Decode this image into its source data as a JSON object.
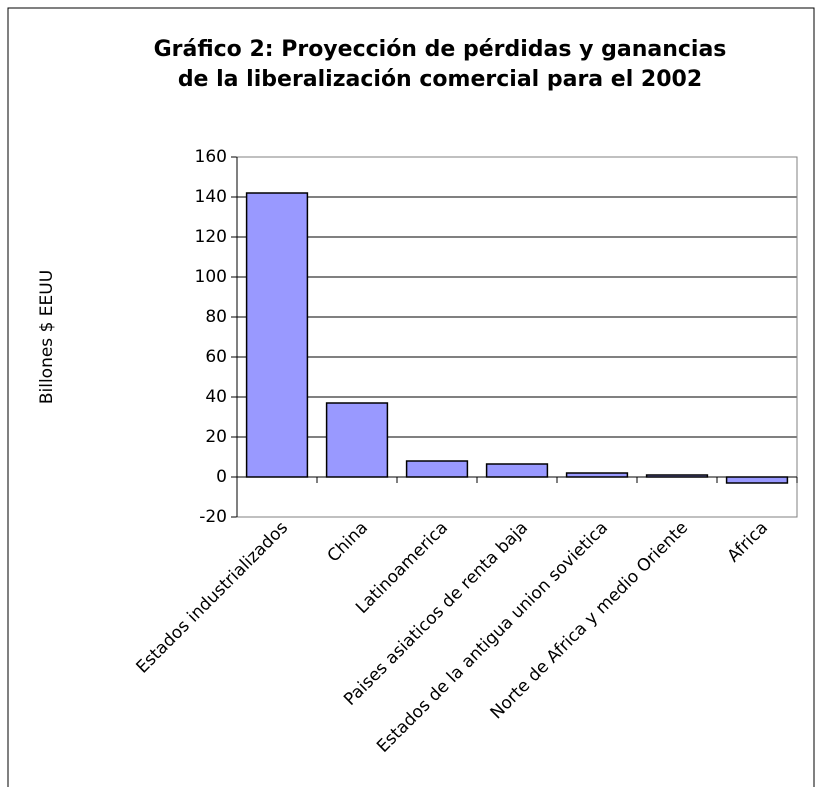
{
  "chart_data": {
    "type": "bar",
    "title": [
      "Gráfico 2: Proyección de pérdidas y ganancias",
      "de la liberalización comercial para el 2002"
    ],
    "y_label": "Billones $ EEUU",
    "categories": [
      "Estados industrializados",
      "China",
      "Latinoamerica",
      "Paises asiaticos de renta baja",
      "Estados de la antigua union sovietica",
      "Norte de Africa y medio Oriente",
      "Africa"
    ],
    "values": [
      142,
      37,
      8,
      6.5,
      2,
      1,
      -3
    ],
    "color": "#9999ff",
    "ylim": [
      -20,
      160
    ],
    "yticks": [
      -20,
      0,
      20,
      40,
      60,
      80,
      100,
      120,
      140,
      160
    ],
    "grid": true
  }
}
